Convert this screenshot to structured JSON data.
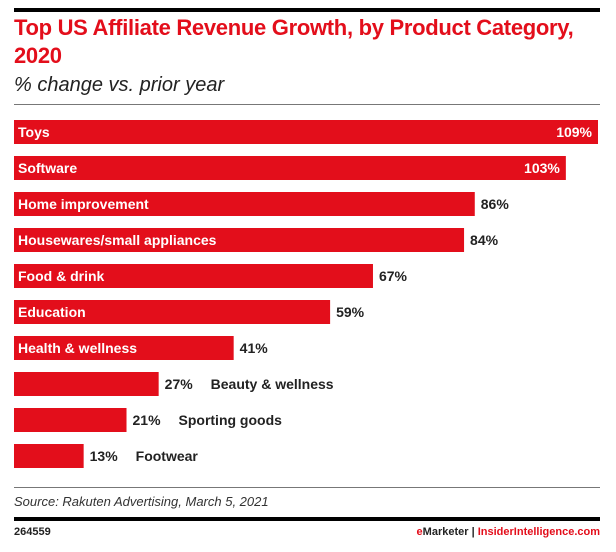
{
  "chart_data": {
    "type": "bar",
    "orientation": "horizontal",
    "title": "Top US Affiliate Revenue Growth, by Product Category, 2020",
    "subtitle": "% change vs. prior year",
    "categories": [
      "Toys",
      "Software",
      "Home improvement",
      "Housewares/small appliances",
      "Food & drink",
      "Education",
      "Health & wellness",
      "Beauty & wellness",
      "Sporting goods",
      "Footwear"
    ],
    "values": [
      109,
      103,
      86,
      84,
      67,
      59,
      41,
      27,
      21,
      13
    ],
    "value_labels": [
      "109%",
      "103%",
      "86%",
      "84%",
      "67%",
      "59%",
      "41%",
      "27%",
      "21%",
      "13%"
    ],
    "unit": "%",
    "xlim": [
      0,
      109
    ],
    "grid": false,
    "bar_color": "#e30e1b"
  },
  "footer": {
    "source": "Source: Rakuten Advertising, March 5, 2021",
    "chart_id": "264559",
    "brand_e": "e",
    "brand_rest": "Marketer",
    "separator": "|",
    "site": "InsiderIntelligence.com"
  }
}
